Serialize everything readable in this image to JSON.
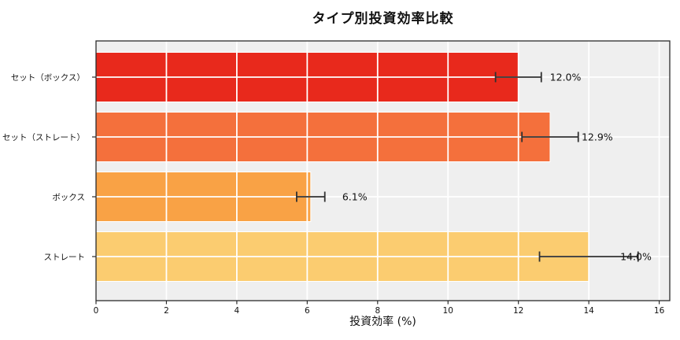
{
  "chart_data": {
    "type": "bar",
    "orientation": "horizontal",
    "title": "タイプ別投資効率比較",
    "xlabel": "投資効率 (%)",
    "ylabel": "",
    "categories": [
      "セット（ボックス）",
      "セット（ストレート）",
      "ボックス",
      "ストレート"
    ],
    "values": [
      12.0,
      12.9,
      6.1,
      14.0
    ],
    "errors": [
      0.65,
      0.8,
      0.4,
      1.4
    ],
    "value_labels": [
      "12.0%",
      "12.9%",
      "6.1%",
      "14.0%"
    ],
    "bar_colors": [
      "#e8291c",
      "#f4703c",
      "#f9a245",
      "#fbcc70"
    ],
    "xlim": [
      0,
      16.3
    ],
    "xticks": [
      0,
      2,
      4,
      6,
      8,
      10,
      12,
      14,
      16
    ],
    "xtick_labels": [
      "0",
      "2",
      "4",
      "6",
      "8",
      "10",
      "12",
      "14",
      "16"
    ],
    "grid": true,
    "legend": false,
    "plot_bg": "#efefef",
    "grid_color": "#ffffff",
    "error_color": "#303030",
    "spine_color": "#2b2b2b",
    "text_color": "#111111"
  }
}
